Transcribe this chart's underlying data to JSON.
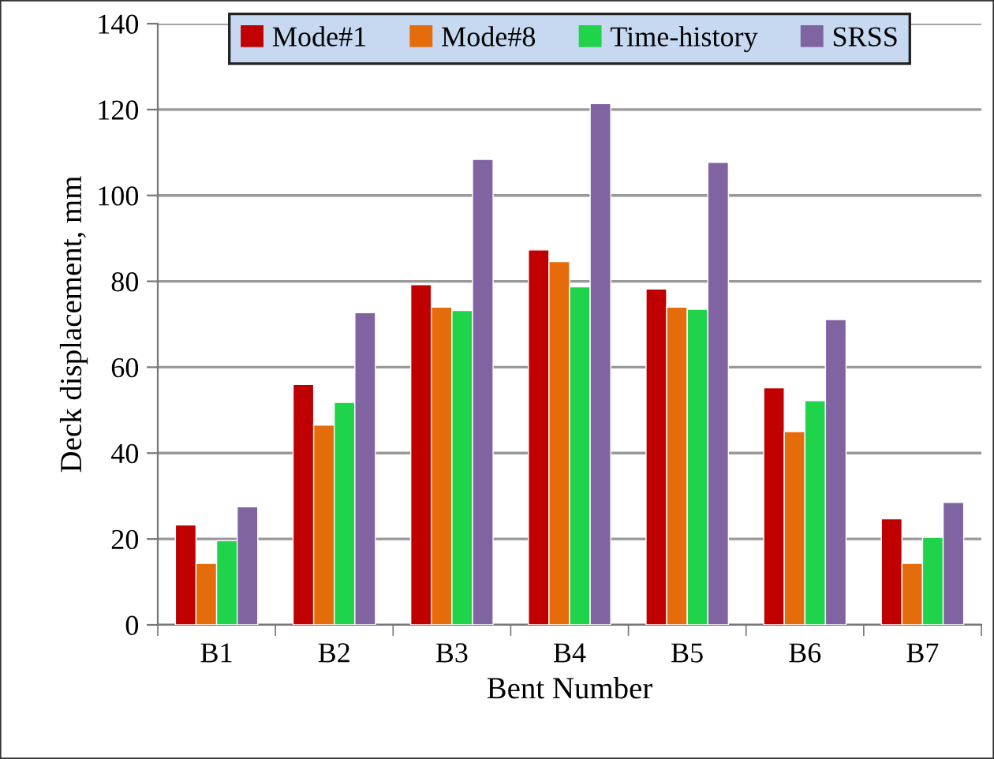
{
  "chart_data": {
    "type": "bar",
    "xlabel": "Bent Number",
    "ylabel": "Deck displacement, mm",
    "categories": [
      "B1",
      "B2",
      "B3",
      "B4",
      "B5",
      "B6",
      "B7"
    ],
    "series": [
      {
        "name": "Mode#1",
        "color": "#c00000",
        "values": [
          23.3,
          56,
          79.2,
          87.3,
          78.2,
          55.2,
          24.7
        ]
      },
      {
        "name": "Mode#8",
        "color": "#e46c0a",
        "values": [
          14.3,
          46.5,
          74,
          84.6,
          74,
          45,
          14.3
        ]
      },
      {
        "name": "Time-history",
        "color": "#1fd34a",
        "values": [
          19.6,
          51.8,
          73.2,
          78.7,
          73.5,
          52.2,
          20.4
        ]
      },
      {
        "name": "SRSS",
        "color": "#8064a2",
        "values": [
          27.5,
          72.7,
          108.4,
          121.4,
          107.7,
          71.1,
          28.5
        ]
      }
    ],
    "ylim": [
      0,
      140
    ],
    "yticks": [
      0,
      20,
      40,
      60,
      80,
      100,
      120,
      140
    ],
    "grid": "y",
    "legend": "top"
  }
}
